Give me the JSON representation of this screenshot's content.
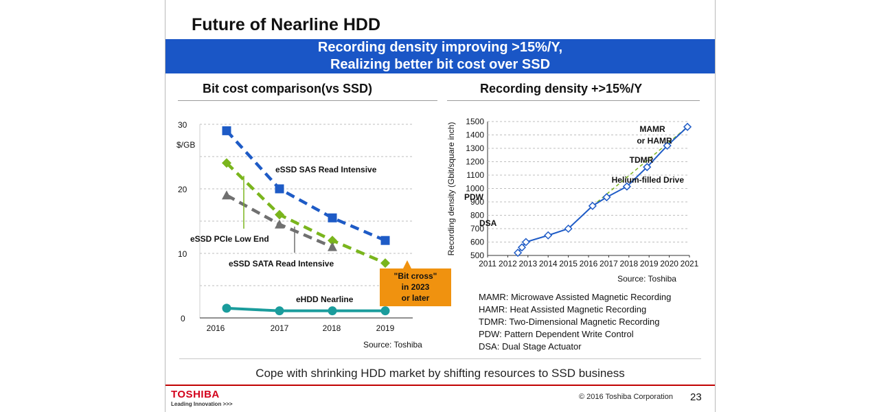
{
  "slide": {
    "title": "Future of Nearline HDD",
    "banner_line1": "Recording density improving >15%/Y,",
    "banner_line2": "Realizing better bit cost over SSD",
    "left_panel_title": "Bit cost comparison(vs SSD)",
    "right_panel_title": "Recording density +>15%/Y",
    "bottom_note": "Cope with shrinking HDD market by shifting resources to SSD business",
    "logo": "TOSHIBA",
    "tagline": "Leading Innovation >>>",
    "copyright": "© 2016 Toshiba Corporation",
    "page_number": "23"
  },
  "chart_data": [
    {
      "type": "line",
      "title": "Bit cost comparison(vs SSD)",
      "ylabel": "$/GB",
      "xlabel": "",
      "categories": [
        "2016",
        "2017",
        "2018",
        "2019"
      ],
      "ylim": [
        0,
        30
      ],
      "yticks": [
        "0",
        "10",
        "20",
        "30"
      ],
      "series": [
        {
          "name": "eSSD SAS Read Intensive",
          "values": [
            29,
            20,
            15.5,
            12
          ],
          "color": "#1e5bc6",
          "dashed": true,
          "marker": "square"
        },
        {
          "name": "eSSD PCIe Low End",
          "values": [
            24,
            16,
            12,
            8.5
          ],
          "color": "#7ab51d",
          "dashed": true,
          "marker": "diamond"
        },
        {
          "name": "eSSD SATA Read Intensive",
          "values": [
            19,
            14.5,
            11,
            null
          ],
          "color": "#707070",
          "dashed": true,
          "marker": "triangle"
        },
        {
          "name": "eHDD Nearline",
          "values": [
            1.5,
            1.1,
            1.1,
            1.1
          ],
          "color": "#1a9c9c",
          "dashed": false,
          "marker": "circle"
        }
      ],
      "callout": {
        "line1": "\"Bit cross\"",
        "line2": "in 2023",
        "line3": "or later",
        "color": "#f0920f"
      },
      "source": "Source: Toshiba"
    },
    {
      "type": "line",
      "title": "Recording density +>15%/Y",
      "ylabel": "Recording density (Gbit/square inch)",
      "xlabel": "",
      "ylim": [
        500,
        1500
      ],
      "xlim": [
        2011,
        2021
      ],
      "yticks": [
        "500",
        "600",
        "700",
        "800",
        "900",
        "1000",
        "1100",
        "1200",
        "1300",
        "1400",
        "1500"
      ],
      "xticks": [
        "2011",
        "2012",
        "2013",
        "2014",
        "2015",
        "2016",
        "2017",
        "2018",
        "2019",
        "2020",
        "2021"
      ],
      "series": [
        {
          "name": "Recording density",
          "color": "#1e5bc6",
          "points": [
            {
              "x": 2012.5,
              "y": 520
            },
            {
              "x": 2012.7,
              "y": 560
            },
            {
              "x": 2012.9,
              "y": 600
            },
            {
              "x": 2014.0,
              "y": 650
            },
            {
              "x": 2015.0,
              "y": 700
            },
            {
              "x": 2016.2,
              "y": 870
            },
            {
              "x": 2016.9,
              "y": 935
            },
            {
              "x": 2017.9,
              "y": 1015
            },
            {
              "x": 2018.9,
              "y": 1160
            },
            {
              "x": 2019.9,
              "y": 1320
            },
            {
              "x": 2020.9,
              "y": 1460
            }
          ]
        },
        {
          "name": "Trend",
          "color": "#7ab51d",
          "dashed": true,
          "points": [
            {
              "x": 2016.2,
              "y": 870
            },
            {
              "x": 2020.9,
              "y": 1460
            }
          ]
        }
      ],
      "annotations": [
        "MAMR",
        "or HAMR",
        "TDMR",
        "Helium-filled Drive",
        "PDW",
        "DSA"
      ],
      "source": "Source: Toshiba"
    }
  ],
  "abbreviations": [
    "MAMR: Microwave Assisted Magnetic Recording",
    "HAMR: Heat Assisted Magnetic Recording",
    "TDMR: Two-Dimensional Magnetic Recording",
    "PDW: Pattern Dependent Write Control",
    "DSA: Dual Stage Actuator"
  ]
}
